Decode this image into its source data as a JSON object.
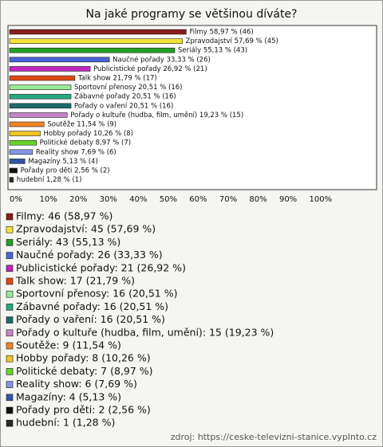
{
  "chart_data": {
    "type": "bar",
    "orientation": "horizontal",
    "title": "Na jaké programy se většinou díváte?",
    "values": [
      58.97,
      57.69,
      55.13,
      33.33,
      26.92,
      21.79,
      20.51,
      20.51,
      20.51,
      19.23,
      11.54,
      10.26,
      8.97,
      7.69,
      5.13,
      2.56,
      1.28
    ],
    "value_labels": [
      "Filmy 58,97 % (46)",
      "Zpravodajství 57,69 % (45)",
      "Seriály 55,13 % (43)",
      "Naučné pořady 33,33 % (26)",
      "Publicistické pořady 26,92 % (21)",
      "Talk show 21,79 % (17)",
      "Sportovní přenosy 20,51 % (16)",
      "Zábavné pořady 20,51 % (16)",
      "Pořady o vaření 20,51 % (16)",
      "Pořady o kultuře (hudba, film, umění) 19,23 % (15)",
      "Soutěže 11,54 % (9)",
      "Hobby pořady 10,26 % (8)",
      "Politické debaty 8,97 % (7)",
      "Reality show 7,69 % (6)",
      "Magazíny 5,13 % (4)",
      "Pořady pro děti 2,56 % (2)",
      "hudební 1,28 % (1)"
    ],
    "colors": [
      "#8b1a1a",
      "#f2e23a",
      "#22a022",
      "#4a64d8",
      "#c026c0",
      "#e04814",
      "#98e898",
      "#28a880",
      "#1f6a6a",
      "#c884c8",
      "#f08424",
      "#f2c424",
      "#66d428",
      "#8494e4",
      "#3454a4",
      "#111111",
      "#2a2a2a"
    ],
    "legend": [
      "Filmy: 46 (58,97 %)",
      "Zpravodajství: 45 (57,69 %)",
      "Seriály: 43 (55,13 %)",
      "Naučné pořady: 26 (33,33 %)",
      "Publicistické pořady: 21 (26,92 %)",
      "Talk show: 17 (21,79 %)",
      "Sportovní přenosy: 16 (20,51 %)",
      "Zábavné pořady: 16 (20,51 %)",
      "Pořady o vaření: 16 (20,51 %)",
      "Pořady o kultuře (hudba, film, umění): 15 (19,23 %)",
      "Soutěže: 9 (11,54 %)",
      "Hobby pořady: 8 (10,26 %)",
      "Politické debaty: 7 (8,97 %)",
      "Reality show: 6 (7,69 %)",
      "Magazíny: 4 (5,13 %)",
      "Pořady pro děti: 2 (2,56 %)",
      "hudební: 1 (1,28 %)"
    ],
    "xlim": [
      0,
      122.5
    ],
    "xticks": [
      {
        "value": 0,
        "label": "0%"
      },
      {
        "value": 10,
        "label": "10%"
      },
      {
        "value": 20,
        "label": "20%"
      },
      {
        "value": 30,
        "label": "30%"
      },
      {
        "value": 40,
        "label": "40%"
      },
      {
        "value": 50,
        "label": "50%"
      },
      {
        "value": 60,
        "label": "60%"
      },
      {
        "value": 70,
        "label": "70%"
      },
      {
        "value": 80,
        "label": "80%"
      },
      {
        "value": 90,
        "label": "90%"
      },
      {
        "value": 100,
        "label": "100%"
      }
    ],
    "source": "zdroj: https://ceske-televizni-stanice.vyplnto.cz"
  }
}
